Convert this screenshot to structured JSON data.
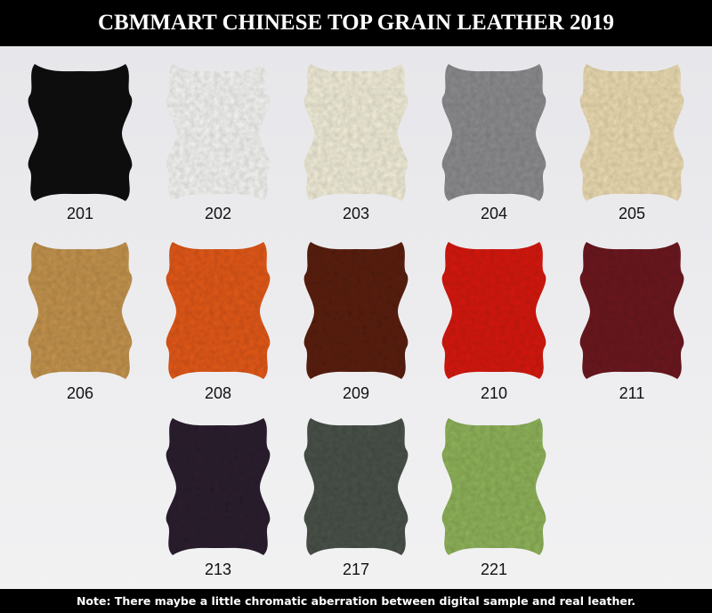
{
  "header": {
    "title": "CBMMART CHINESE TOP GRAIN LEATHER 2019"
  },
  "swatches": {
    "rows": [
      [
        {
          "code": "201",
          "color": "#171717"
        },
        {
          "code": "202",
          "color": "#f5f5f3"
        },
        {
          "code": "203",
          "color": "#f2eed9"
        },
        {
          "code": "204",
          "color": "#8d8d90"
        },
        {
          "code": "205",
          "color": "#ecdcb2"
        }
      ],
      [
        {
          "code": "206",
          "color": "#c4944f"
        },
        {
          "code": "208",
          "color": "#e35a1b"
        },
        {
          "code": "209",
          "color": "#5b2318"
        },
        {
          "code": "210",
          "color": "#d71b17"
        },
        {
          "code": "211",
          "color": "#6d1a20"
        }
      ],
      [
        {
          "code": "213",
          "color": "#2f2331"
        },
        {
          "code": "217",
          "color": "#4b524c"
        },
        {
          "code": "221",
          "color": "#90b45b"
        }
      ]
    ]
  },
  "footer": {
    "note": "Note: There maybe a little chromatic aberration between digital sample and real leather."
  }
}
